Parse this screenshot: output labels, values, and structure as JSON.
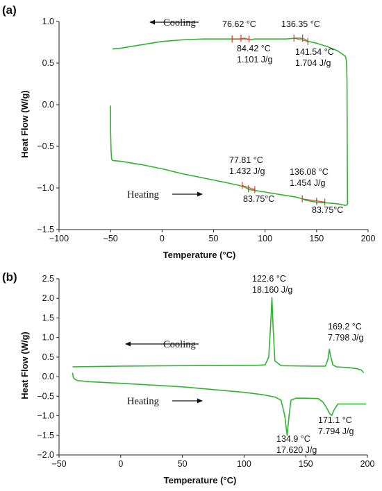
{
  "chart_data": [
    {
      "panel": "(a)",
      "type": "line",
      "xlabel": "Temperature (°C)",
      "ylabel": "Heat Flow (W/g)",
      "xlim": [
        -100,
        200
      ],
      "ylim": [
        -1.5,
        1.0
      ],
      "xticks": [
        "−100",
        "−50",
        "0",
        "50",
        "100",
        "150",
        "200"
      ],
      "yticks": [
        "−1.5",
        "−1.0",
        "−0.5",
        "0.0",
        "0.5",
        "1.0"
      ],
      "series": [
        {
          "name": "Cooling",
          "color": "#2db52d",
          "x": [
            180,
            179.5,
            179,
            178,
            176,
            170,
            160,
            150,
            142,
            138,
            134,
            130,
            120,
            110,
            100,
            90,
            85,
            80,
            75,
            70,
            60,
            40,
            20,
            0,
            -20,
            -40,
            -48
          ],
          "y": [
            -1.2,
            0.3,
            0.52,
            0.58,
            0.6,
            0.65,
            0.7,
            0.74,
            0.76,
            0.79,
            0.8,
            0.8,
            0.79,
            0.79,
            0.79,
            0.79,
            0.78,
            0.8,
            0.79,
            0.79,
            0.79,
            0.79,
            0.78,
            0.76,
            0.72,
            0.68,
            0.67
          ]
        },
        {
          "name": "Heating",
          "color": "#2db52d",
          "x": [
            -50,
            -50,
            -49.5,
            -49,
            -48,
            -40,
            -20,
            0,
            20,
            40,
            60,
            75,
            80,
            85,
            90,
            100,
            120,
            130,
            136,
            140,
            150,
            160,
            170,
            178,
            180
          ],
          "y": [
            -0.01,
            -0.3,
            -0.55,
            -0.65,
            -0.67,
            -0.68,
            -0.72,
            -0.77,
            -0.83,
            -0.88,
            -0.93,
            -0.97,
            -0.99,
            -1.02,
            -1.03,
            -1.05,
            -1.09,
            -1.11,
            -1.13,
            -1.15,
            -1.17,
            -1.18,
            -1.19,
            -1.21,
            -1.2
          ]
        }
      ],
      "markers": [
        {
          "x": 68,
          "y": 0.79
        },
        {
          "x": 76.6,
          "y": 0.8
        },
        {
          "x": 84.4,
          "y": 0.79
        },
        {
          "x": 128,
          "y": 0.8
        },
        {
          "x": 136.4,
          "y": 0.8
        },
        {
          "x": 141.5,
          "y": 0.76
        },
        {
          "x": 77.8,
          "y": -0.97
        },
        {
          "x": 83.8,
          "y": -1.01
        },
        {
          "x": 90,
          "y": -1.02
        },
        {
          "x": 136.1,
          "y": -1.13
        },
        {
          "x": 150,
          "y": -1.16
        },
        {
          "x": 158,
          "y": -1.17
        }
      ],
      "annotations": [
        {
          "line1": "76.62 °C",
          "line2": ""
        },
        {
          "line1": "136.35 °C",
          "line2": ""
        },
        {
          "line1": "84.42 °C",
          "line2": "1.101 J/g"
        },
        {
          "line1": "141.54 °C",
          "line2": "1.704 J/g"
        },
        {
          "line1": "77.81 °C",
          "line2": "1.432 J/g"
        },
        {
          "line1": "136.08 °C",
          "line2": "1.454 J/g"
        },
        {
          "line1": "83.75°C",
          "line2": ""
        },
        {
          "line1": "83.75°C",
          "line2": ""
        }
      ],
      "mode_labels": {
        "cooling": "Cooling",
        "heating": "Heating"
      }
    },
    {
      "panel": "(b)",
      "type": "line",
      "xlabel": "Temperature (°C)",
      "ylabel": "Heat Flow (W/g)",
      "xlim": [
        -50,
        200
      ],
      "ylim": [
        -2.0,
        2.5
      ],
      "xticks": [
        "−50",
        "0",
        "50",
        "100",
        "150",
        "200"
      ],
      "yticks": [
        "−2.0",
        "−1.5",
        "−1.0",
        "−0.5",
        "0.0",
        "0.5",
        "1.0",
        "1.5",
        "2.0",
        "2.5"
      ],
      "series": [
        {
          "name": "Cooling",
          "color": "#2db52d",
          "x": [
            197,
            195,
            192,
            185,
            175,
            172,
            170,
            169.2,
            168,
            166,
            163,
            155,
            130,
            125,
            123.5,
            122.6,
            121.5,
            120,
            117,
            110,
            50,
            0,
            -39
          ],
          "y": [
            0.1,
            0.17,
            0.2,
            0.23,
            0.25,
            0.3,
            0.55,
            0.7,
            0.45,
            0.27,
            0.27,
            0.27,
            0.28,
            0.4,
            1.3,
            2.02,
            1.3,
            0.5,
            0.3,
            0.29,
            0.28,
            0.27,
            0.25
          ]
        },
        {
          "name": "Heating",
          "color": "#2db52d",
          "x": [
            -39,
            -38.5,
            -37.5,
            -35,
            -25,
            0,
            50,
            100,
            115,
            125,
            130,
            133,
            134.9,
            136.5,
            138,
            142,
            150,
            160,
            164,
            167,
            169.5,
            171.1,
            173,
            176,
            185,
            197,
            199
          ],
          "y": [
            0.1,
            -0.01,
            -0.06,
            -0.1,
            -0.13,
            -0.17,
            -0.26,
            -0.4,
            -0.46,
            -0.52,
            -0.6,
            -1.0,
            -1.5,
            -1.0,
            -0.6,
            -0.55,
            -0.55,
            -0.56,
            -0.65,
            -0.8,
            -0.95,
            -0.99,
            -0.85,
            -0.7,
            -0.7,
            -0.7,
            -0.7
          ]
        }
      ],
      "annotations": [
        {
          "line1": "122.6 °C",
          "line2": "18.160 J/g"
        },
        {
          "line1": "169.2 °C",
          "line2": "7.798 J/g"
        },
        {
          "line1": "171.1 °C",
          "line2": "7.794 J/g"
        },
        {
          "line1": "134.9 °C",
          "line2": "17.620 J/g"
        }
      ],
      "mode_labels": {
        "cooling": "Cooling",
        "heating": "Heating"
      }
    }
  ]
}
